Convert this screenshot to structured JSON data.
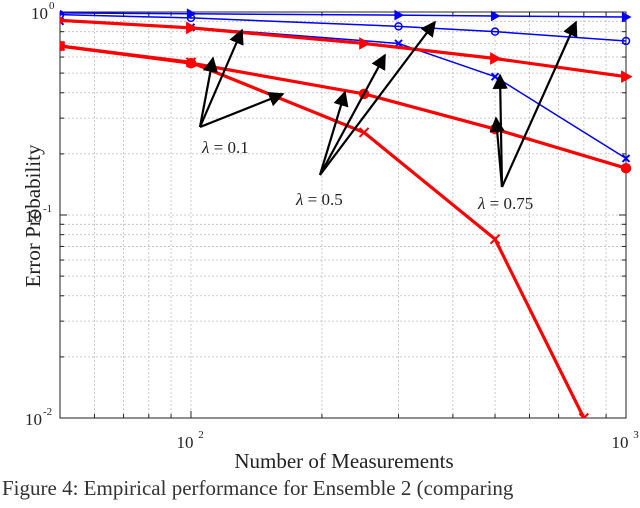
{
  "chart_data": {
    "type": "line",
    "xscale": "log",
    "yscale": "log",
    "xlim": [
      50,
      1000
    ],
    "ylim": [
      0.01,
      1
    ],
    "xlabel": "Number of Measurements",
    "ylabel": "Error Probability",
    "grid": true,
    "x_ticks": [
      {
        "base": "10",
        "exp": "2",
        "value": 100
      },
      {
        "base": "10",
        "exp": "3",
        "value": 1000
      }
    ],
    "y_ticks": [
      {
        "base": "10",
        "exp": "0",
        "value": 1
      },
      {
        "base": "10",
        "exp": "-1",
        "value": 0.1
      },
      {
        "base": "10",
        "exp": "-2",
        "value": 0.01
      }
    ],
    "series": [
      {
        "color": "#0000ff",
        "marker": "triangle",
        "x": [
          50,
          100,
          300,
          500,
          1000
        ],
        "y": [
          0.99,
          0.98,
          0.965,
          0.955,
          0.945
        ]
      },
      {
        "color": "#0000ff",
        "marker": "circle",
        "x": [
          50,
          100,
          300,
          500,
          1000
        ],
        "y": [
          0.97,
          0.935,
          0.85,
          0.8,
          0.72
        ]
      },
      {
        "color": "#0000ff",
        "marker": "x",
        "x": [
          50,
          100,
          300,
          500,
          1000
        ],
        "y": [
          0.9,
          0.84,
          0.7,
          0.48,
          0.19
        ]
      },
      {
        "color": "#ff0000",
        "marker": "triangle",
        "x": [
          50,
          100,
          250,
          500,
          1000
        ],
        "y": [
          0.91,
          0.835,
          0.7,
          0.59,
          0.48
        ]
      },
      {
        "color": "#ff0000",
        "marker": "circle",
        "x": [
          50,
          100,
          250,
          500,
          1000
        ],
        "y": [
          0.68,
          0.56,
          0.395,
          0.265,
          0.17
        ]
      },
      {
        "color": "#ff0000",
        "marker": "x",
        "x": [
          50,
          100,
          250,
          500,
          800
        ],
        "y": [
          0.68,
          0.565,
          0.255,
          0.076,
          0.01
        ]
      }
    ],
    "annotations": [
      {
        "label_symbol": "λ",
        "label_value": " = 0.1"
      },
      {
        "label_symbol": "λ",
        "label_value": " = 0.5"
      },
      {
        "label_symbol": "λ",
        "label_value": " = 0.75"
      }
    ]
  },
  "caption": "Figure 4: Empirical performance for Ensemble 2 (comparing"
}
